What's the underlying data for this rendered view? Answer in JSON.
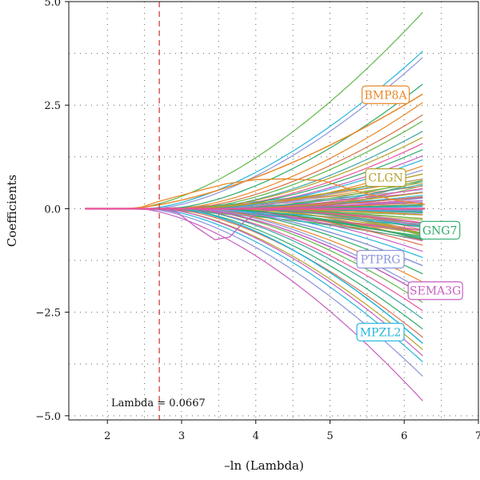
{
  "chart_data": {
    "type": "line",
    "xlabel": "–ln (Lambda)",
    "ylabel": "Coefficients",
    "xlim": [
      1.48,
      7.0
    ],
    "ylim": [
      -5.1,
      5.0
    ],
    "x_ticks": [
      2,
      3,
      4,
      5,
      6,
      7
    ],
    "y_ticks": [
      -5.0,
      -2.5,
      0.0,
      2.5,
      5.0
    ],
    "grid": "dotted",
    "lambda_line": {
      "x": 2.7,
      "label": "Lambda = 0.0667",
      "color": "#dc3c3c"
    },
    "x_start": 1.7,
    "x_end": 6.28,
    "series": [
      {
        "name": "BMP8A",
        "color": "#e8892a",
        "end": 2.8,
        "onset": 2.2
      },
      {
        "name": "CLGN",
        "color": "#b5a22a",
        "end": 0.85,
        "onset": 3.0
      },
      {
        "name": "GNG7",
        "color": "#2eaa6b",
        "end": -0.75,
        "onset": 3.4
      },
      {
        "name": "PTPRG",
        "color": "#8b95d8",
        "end": -1.4,
        "onset": 3.3
      },
      {
        "name": "SEMA3G",
        "color": "#c65fc1",
        "end": -2.1,
        "onset": 3.1
      },
      {
        "name": "MPZL2",
        "color": "#25b5dc",
        "end": -3.3,
        "onset": 2.9
      }
    ],
    "labels": [
      {
        "text": "BMP8A",
        "series": "BMP8A",
        "lx": 5.75,
        "ly": 2.75
      },
      {
        "text": "CLGN",
        "series": "CLGN",
        "lx": 5.75,
        "ly": 0.75
      },
      {
        "text": "GNG7",
        "series": "GNG7",
        "lx": 6.48,
        "ly": -0.52
      },
      {
        "text": "PTPRG",
        "series": "PTPRG",
        "lx": 5.68,
        "ly": -1.22
      },
      {
        "text": "SEMA3G",
        "series": "SEMA3G",
        "lx": 6.42,
        "ly": -1.98
      },
      {
        "text": "MPZL2",
        "series": "MPZL2",
        "lx": 5.68,
        "ly": -2.98
      }
    ],
    "palette": [
      "#e8892a",
      "#b5a22a",
      "#2eaa6b",
      "#25b5dc",
      "#8b95d8",
      "#c65fc1",
      "#e8559b",
      "#5fb84a",
      "#3fa6a6",
      "#d9704a"
    ],
    "background_paths": [
      {
        "end": 4.8,
        "onset": 2.3,
        "color": "#5fb84a"
      },
      {
        "end": 3.85,
        "onset": 2.5,
        "color": "#25b5dc"
      },
      {
        "end": 3.7,
        "onset": 2.6,
        "color": "#8b95d8"
      },
      {
        "end": 3.05,
        "onset": 2.8,
        "color": "#2eaa6b"
      },
      {
        "end": 2.6,
        "onset": 2.9,
        "color": "#e8892a"
      },
      {
        "end": 2.3,
        "onset": 3.0,
        "color": "#d9704a"
      },
      {
        "end": 2.15,
        "onset": 3.1,
        "color": "#5fb84a"
      },
      {
        "end": 1.9,
        "onset": 3.2,
        "color": "#3fa6a6"
      },
      {
        "end": 1.75,
        "onset": 3.2,
        "color": "#b5a22a"
      },
      {
        "end": 1.6,
        "onset": 3.3,
        "color": "#e8559b"
      },
      {
        "end": 1.45,
        "onset": 3.3,
        "color": "#2eaa6b"
      },
      {
        "end": 1.3,
        "onset": 3.4,
        "color": "#c65fc1"
      },
      {
        "end": 1.2,
        "onset": 3.4,
        "color": "#25b5dc"
      },
      {
        "end": 1.05,
        "onset": 3.5,
        "color": "#e8892a"
      },
      {
        "end": 0.95,
        "onset": 3.5,
        "color": "#8b95d8"
      },
      {
        "end": 0.7,
        "onset": 3.6,
        "color": "#5fb84a"
      },
      {
        "end": 0.6,
        "onset": 3.6,
        "color": "#3fa6a6"
      },
      {
        "end": 0.5,
        "onset": 3.7,
        "color": "#e8559b"
      },
      {
        "end": 0.4,
        "onset": 3.7,
        "color": "#b5a22a"
      },
      {
        "end": 0.3,
        "onset": 3.8,
        "color": "#d9704a"
      },
      {
        "end": 0.2,
        "onset": 3.8,
        "color": "#c65fc1"
      },
      {
        "end": 0.1,
        "onset": 3.9,
        "color": "#2eaa6b"
      },
      {
        "end": 0.05,
        "onset": 3.9,
        "color": "#25b5dc"
      },
      {
        "end": -0.05,
        "onset": 3.9,
        "color": "#8b95d8"
      },
      {
        "end": -0.15,
        "onset": 3.8,
        "color": "#e8892a"
      },
      {
        "end": -0.25,
        "onset": 3.8,
        "color": "#5fb84a"
      },
      {
        "end": -0.35,
        "onset": 3.7,
        "color": "#e8559b"
      },
      {
        "end": -0.45,
        "onset": 3.7,
        "color": "#3fa6a6"
      },
      {
        "end": -0.6,
        "onset": 3.6,
        "color": "#b5a22a"
      },
      {
        "end": -0.9,
        "onset": 3.5,
        "color": "#d9704a"
      },
      {
        "end": -1.05,
        "onset": 3.5,
        "color": "#c65fc1"
      },
      {
        "end": -1.2,
        "onset": 3.4,
        "color": "#25b5dc"
      },
      {
        "end": -1.6,
        "onset": 3.3,
        "color": "#2eaa6b"
      },
      {
        "end": -1.8,
        "onset": 3.2,
        "color": "#e8892a"
      },
      {
        "end": -2.0,
        "onset": 3.2,
        "color": "#8b95d8"
      },
      {
        "end": -2.3,
        "onset": 3.1,
        "color": "#5fb84a"
      },
      {
        "end": -2.5,
        "onset": 3.0,
        "color": "#e8559b"
      },
      {
        "end": -2.7,
        "onset": 3.0,
        "color": "#3fa6a6"
      },
      {
        "end": -2.95,
        "onset": 2.9,
        "color": "#2eaa6b"
      },
      {
        "end": -3.15,
        "onset": 2.8,
        "color": "#d9704a"
      },
      {
        "end": -3.45,
        "onset": 2.7,
        "color": "#b5a22a"
      },
      {
        "end": -3.6,
        "onset": 2.7,
        "color": "#c65fc1"
      },
      {
        "end": -3.75,
        "onset": 2.6,
        "color": "#25b5dc"
      },
      {
        "end": -4.1,
        "onset": 2.5,
        "color": "#8b95d8"
      },
      {
        "end": -4.7,
        "onset": 2.4,
        "color": "#c65fc1"
      }
    ],
    "dip_path": {
      "color": "#c65fc1",
      "points": [
        [
          2.7,
          0.0
        ],
        [
          2.95,
          -0.1
        ],
        [
          3.2,
          -0.45
        ],
        [
          3.45,
          -0.75
        ],
        [
          3.65,
          -0.68
        ],
        [
          3.85,
          -0.3
        ],
        [
          4.1,
          -0.05
        ],
        [
          4.5,
          0.0
        ]
      ]
    },
    "early_path": {
      "color": "#e8892a",
      "points": [
        [
          2.4,
          0.0
        ],
        [
          2.7,
          0.18
        ],
        [
          3.2,
          0.42
        ],
        [
          3.6,
          0.6
        ],
        [
          4.0,
          0.7
        ],
        [
          4.4,
          0.72
        ],
        [
          4.9,
          0.68
        ],
        [
          5.4,
          0.4
        ],
        [
          5.9,
          0.2
        ],
        [
          6.28,
          0.1
        ]
      ]
    },
    "mini_bundle_count": 70
  }
}
